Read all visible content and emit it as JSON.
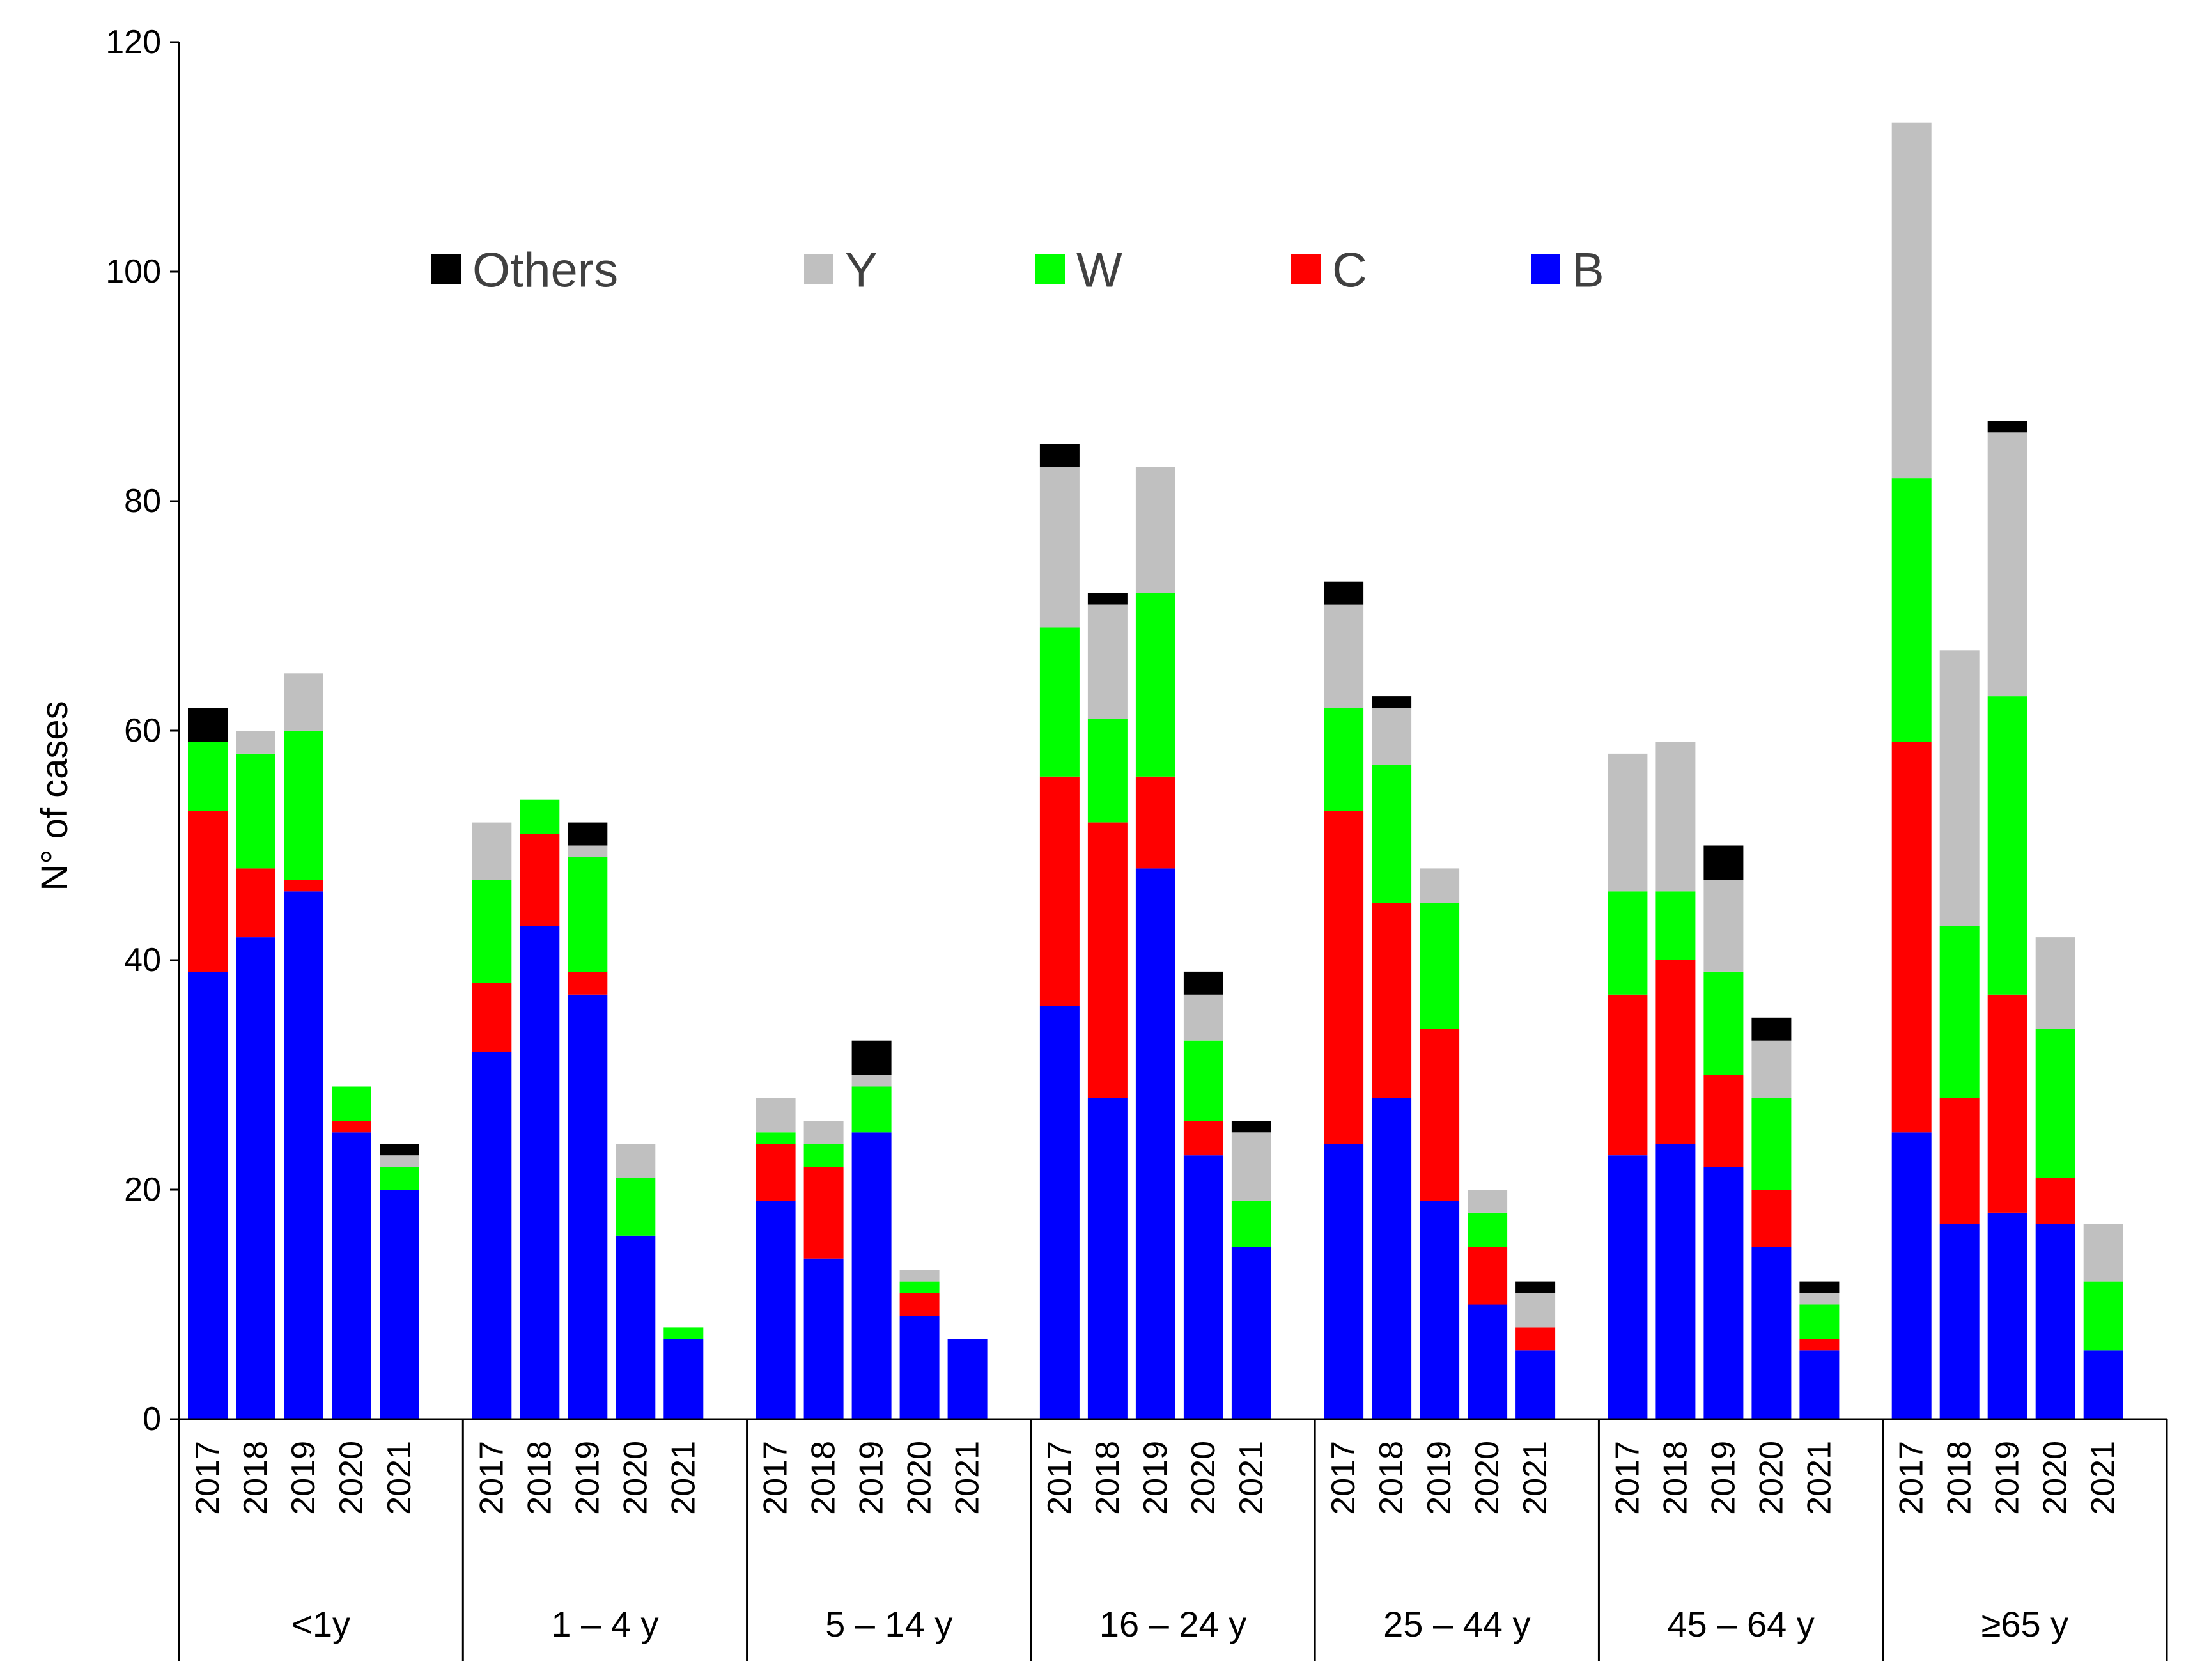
{
  "chart_data": {
    "type": "bar",
    "stacked": true,
    "ylabel": "N° of cases",
    "xlabel": "",
    "ylim": [
      0,
      120
    ],
    "yticks": [
      0,
      20,
      40,
      60,
      80,
      100,
      120
    ],
    "grid": false,
    "legend_position": "top-center",
    "years": [
      "2017",
      "2018",
      "2019",
      "2020",
      "2021"
    ],
    "groups": [
      "<1y",
      "1 – 4 y",
      "5 – 14 y",
      "16 – 24 y",
      "25 – 44 y",
      "45 – 64  y",
      "≥65 y"
    ],
    "legend_order": [
      "Others",
      "Y",
      "W",
      "C",
      "B"
    ],
    "series": [
      {
        "name": "B",
        "color": "#0000ff",
        "values": [
          [
            39,
            42,
            46,
            25,
            20
          ],
          [
            32,
            43,
            37,
            16,
            7
          ],
          [
            19,
            14,
            25,
            9,
            7
          ],
          [
            36,
            28,
            48,
            23,
            15
          ],
          [
            24,
            28,
            19,
            10,
            6
          ],
          [
            23,
            24,
            22,
            15,
            6
          ],
          [
            25,
            17,
            18,
            17,
            6
          ]
        ]
      },
      {
        "name": "C",
        "color": "#ff0000",
        "values": [
          [
            14,
            6,
            1,
            1,
            0
          ],
          [
            6,
            8,
            2,
            0,
            0
          ],
          [
            5,
            8,
            0,
            2,
            0
          ],
          [
            20,
            24,
            8,
            3,
            0
          ],
          [
            29,
            17,
            15,
            5,
            2
          ],
          [
            14,
            16,
            8,
            5,
            1
          ],
          [
            34,
            11,
            19,
            4,
            0
          ]
        ]
      },
      {
        "name": "W",
        "color": "#00ff00",
        "values": [
          [
            6,
            10,
            13,
            3,
            2
          ],
          [
            9,
            3,
            10,
            5,
            1
          ],
          [
            1,
            2,
            4,
            1,
            0
          ],
          [
            13,
            9,
            16,
            7,
            4
          ],
          [
            9,
            12,
            11,
            3,
            0
          ],
          [
            9,
            6,
            9,
            8,
            3
          ],
          [
            23,
            15,
            26,
            13,
            6
          ]
        ]
      },
      {
        "name": "Y",
        "color": "#c0c0c0",
        "values": [
          [
            0,
            2,
            5,
            0,
            1
          ],
          [
            5,
            0,
            1,
            3,
            0
          ],
          [
            3,
            2,
            1,
            1,
            0
          ],
          [
            14,
            10,
            11,
            4,
            6
          ],
          [
            9,
            5,
            3,
            2,
            3
          ],
          [
            12,
            13,
            8,
            5,
            1
          ],
          [
            31,
            24,
            23,
            8,
            5
          ]
        ]
      },
      {
        "name": "Others",
        "color": "#000000",
        "values": [
          [
            3,
            0,
            0,
            0,
            1
          ],
          [
            0,
            0,
            2,
            0,
            0
          ],
          [
            0,
            0,
            3,
            0,
            0
          ],
          [
            2,
            1,
            0,
            2,
            1
          ],
          [
            2,
            1,
            0,
            0,
            1
          ],
          [
            0,
            0,
            3,
            2,
            1
          ],
          [
            0,
            0,
            1,
            0,
            0
          ]
        ]
      }
    ]
  }
}
